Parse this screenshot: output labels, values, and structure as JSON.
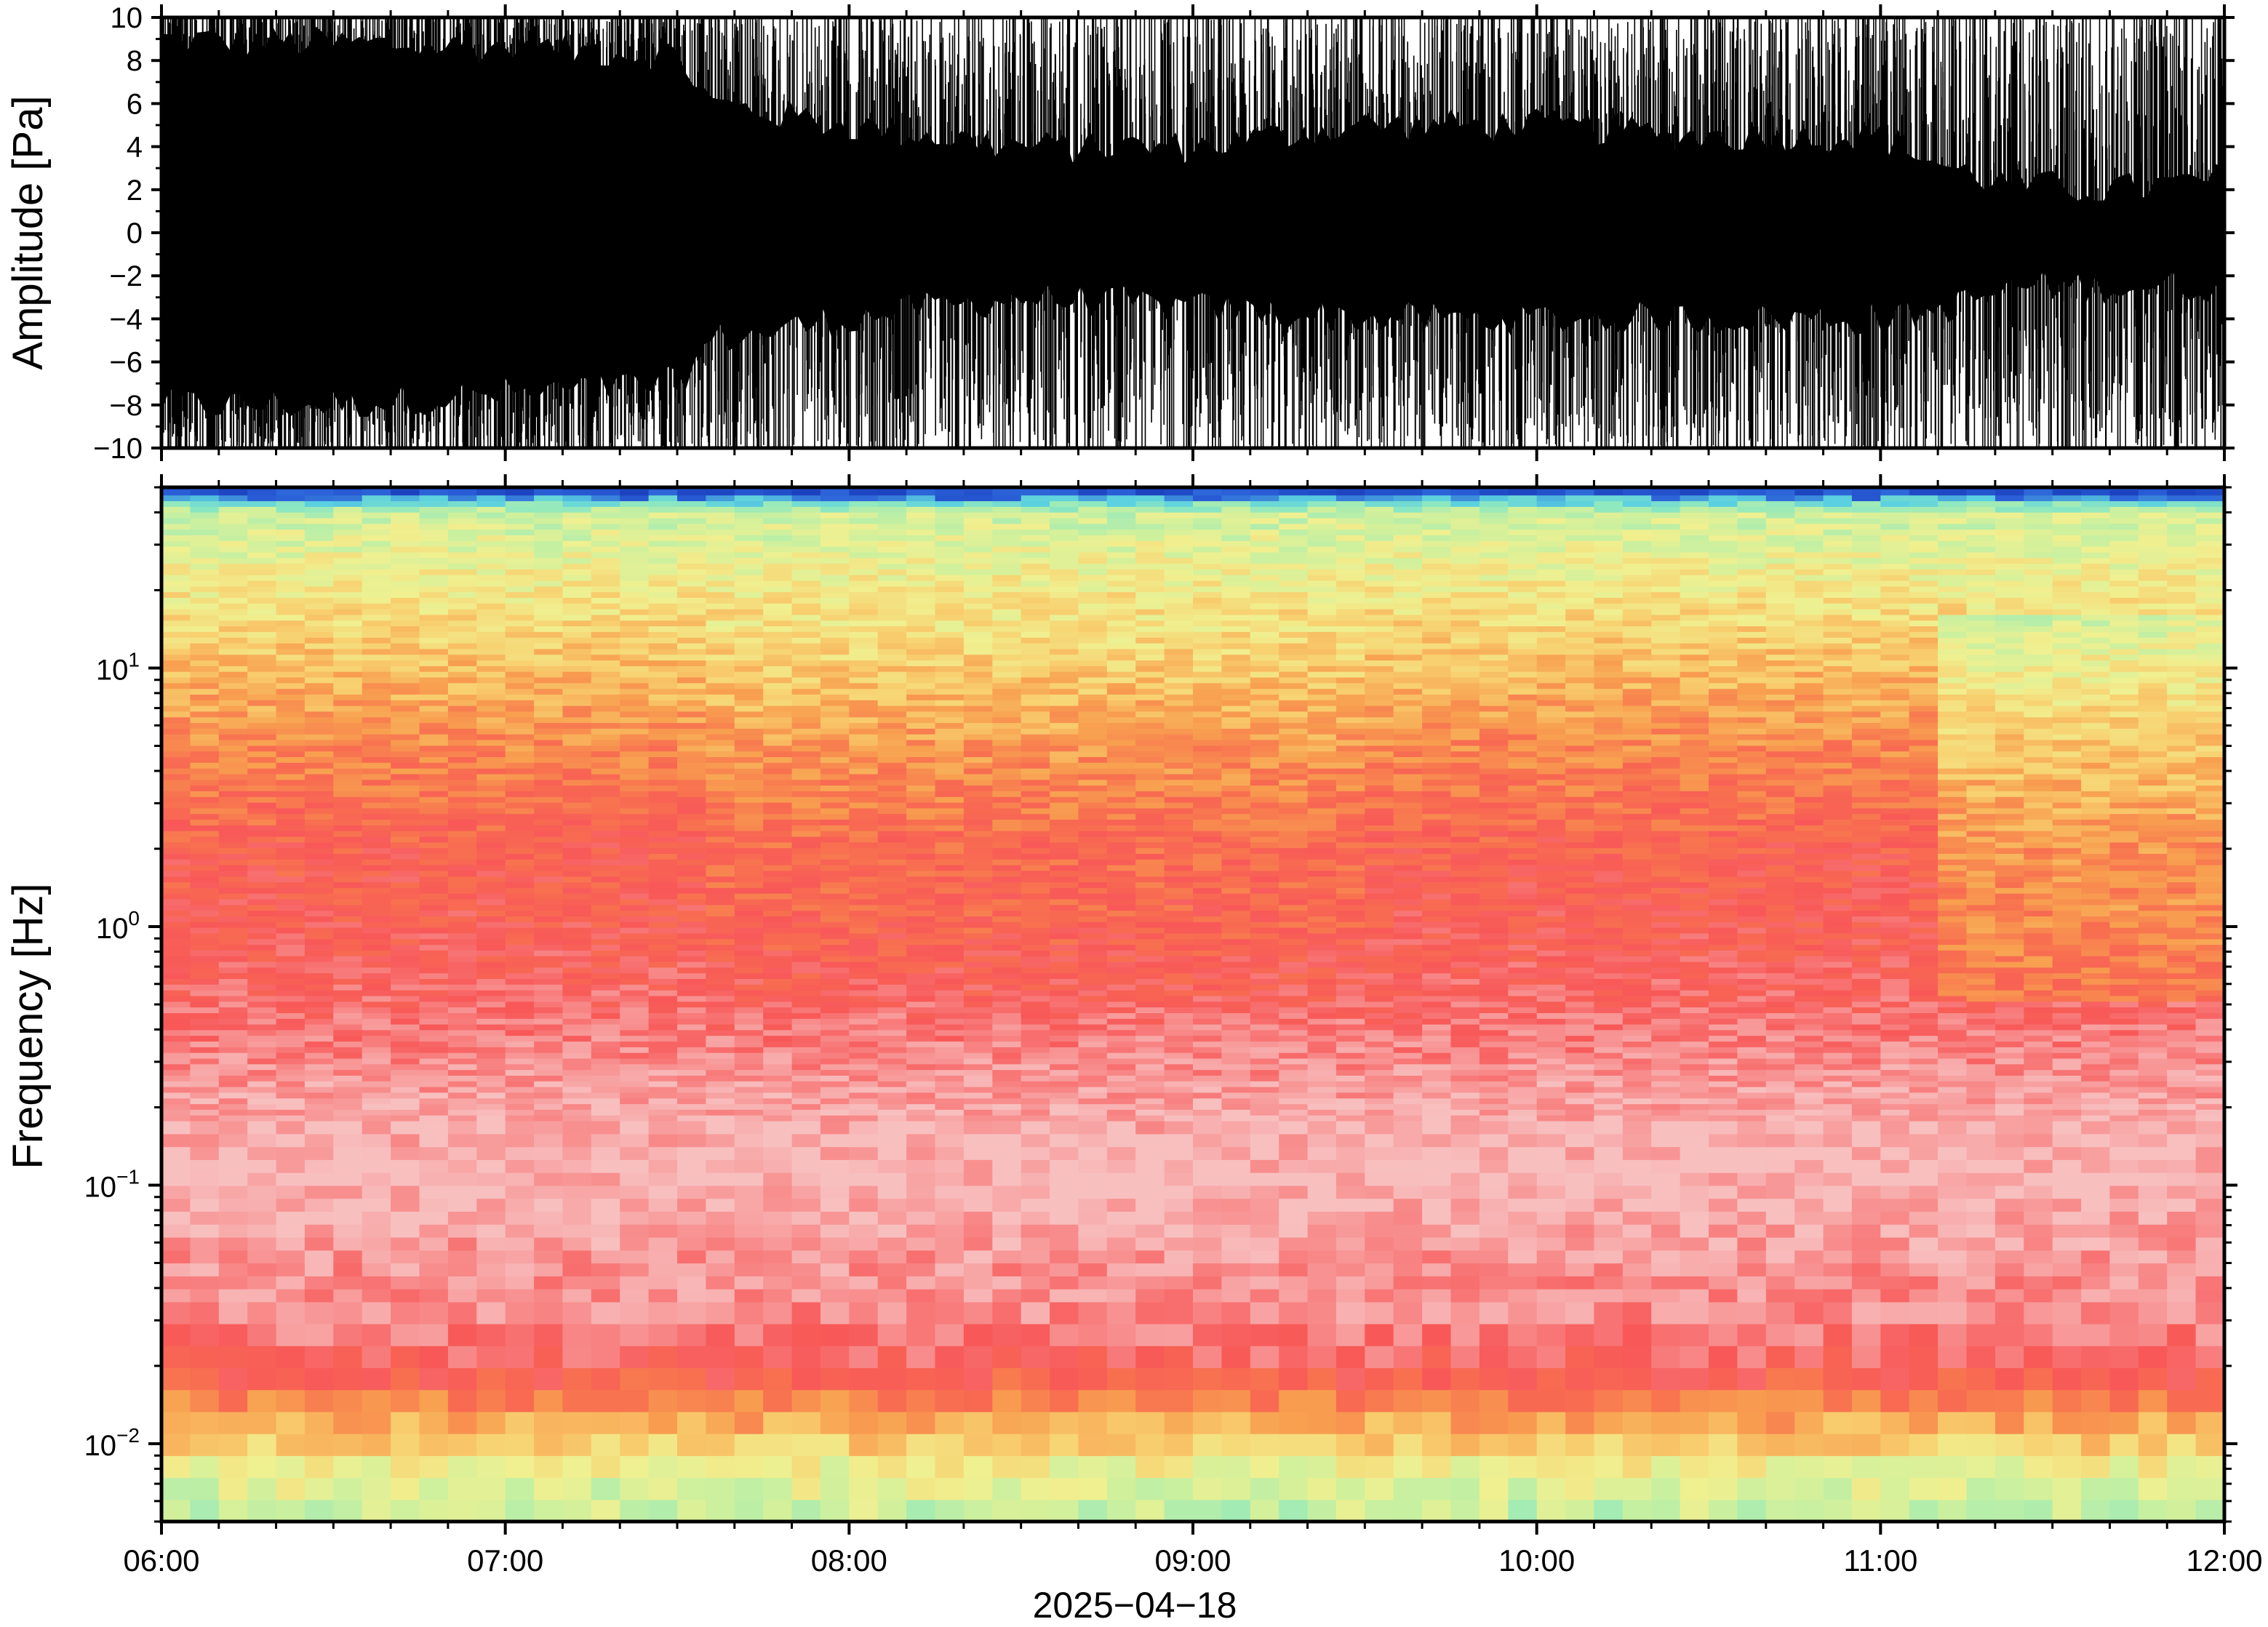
{
  "chart_data": [
    {
      "type": "line",
      "panel": "waveform",
      "ylabel": "Amplitude [Pa]",
      "ylim": [
        -10,
        10
      ],
      "yticks": [
        10,
        8,
        6,
        4,
        2,
        0,
        -2,
        -4,
        -6,
        -8,
        -10
      ],
      "ytick_labels": [
        "10",
        "8",
        "6",
        "4",
        "2",
        "0",
        "−2",
        "−4",
        "−6",
        "−8",
        "−10"
      ],
      "x_range": [
        "06:00",
        "12:00"
      ],
      "trace_color": "#000000",
      "envelope": {
        "time_hours": [
          6.0,
          6.5,
          7.0,
          7.5,
          7.6,
          8.0,
          8.5,
          9.0,
          9.5,
          10.0,
          10.5,
          11.0,
          11.2,
          11.4,
          11.7,
          12.0
        ],
        "upper_core": [
          9.0,
          8.8,
          8.6,
          8.3,
          6.0,
          5.0,
          4.0,
          4.0,
          5.0,
          5.0,
          4.5,
          4.5,
          3.0,
          2.2,
          2.0,
          2.5
        ],
        "lower_core": [
          -8.0,
          -8.0,
          -7.5,
          -7.0,
          -5.0,
          -4.0,
          -3.0,
          -3.5,
          -4.0,
          -4.0,
          -4.0,
          -4.0,
          -3.5,
          -2.5,
          -2.5,
          -2.5
        ],
        "peak": 10
      }
    },
    {
      "type": "heatmap",
      "panel": "spectrogram",
      "ylabel": "Frequency [Hz]",
      "yscale": "log",
      "ylim": [
        0.005,
        50
      ],
      "yticks": [
        0.01,
        0.1,
        1,
        10
      ],
      "ytick_labels": [
        {
          "base": "10",
          "exp": "−2"
        },
        {
          "base": "10",
          "exp": "−1"
        },
        {
          "base": "10",
          "exp": "0"
        },
        {
          "base": "10",
          "exp": "1"
        }
      ],
      "xlabel": "2025−04−18",
      "xticks": [
        "06:00",
        "07:00",
        "08:00",
        "09:00",
        "10:00",
        "11:00",
        "12:00"
      ],
      "colormap": [
        "#0a1a9c",
        "#2a5fd8",
        "#5ad0e0",
        "#8ee8c0",
        "#c8f0a0",
        "#f0f090",
        "#f8d070",
        "#f8a050",
        "#f87050",
        "#f85858",
        "#f89090",
        "#f8c0c0"
      ],
      "levels_by_freq": {
        "freq_hz": [
          0.005,
          0.008,
          0.012,
          0.02,
          0.03,
          0.05,
          0.1,
          0.2,
          0.5,
          1,
          2,
          5,
          10,
          20,
          40,
          48
        ],
        "level": [
          0.35,
          0.45,
          0.62,
          0.82,
          0.9,
          0.92,
          0.98,
          0.95,
          0.85,
          0.8,
          0.78,
          0.68,
          0.58,
          0.48,
          0.38,
          0.05
        ]
      }
    }
  ]
}
